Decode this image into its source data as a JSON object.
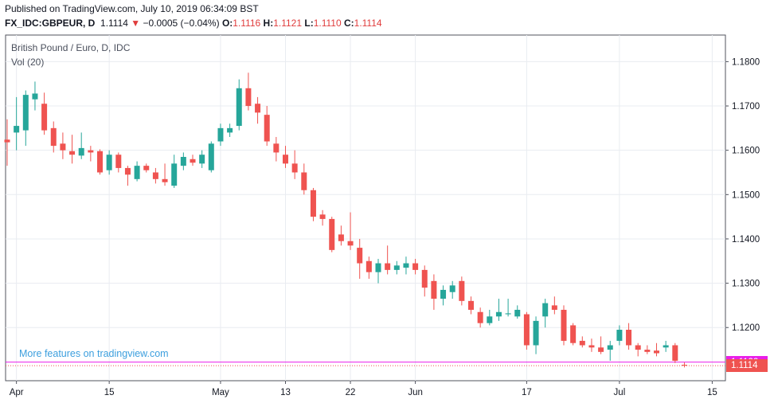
{
  "header": {
    "published": "Published on TradingView.com, July 10, 2019 06:34:09 BST",
    "symbol": "FX_IDC:GBPEUR, D",
    "last": "1.1114",
    "change": "−0.0005 (−0.04%)",
    "o_label": "O:",
    "o_value": "1.1116",
    "h_label": "H:",
    "h_value": "1.1121",
    "l_label": "L:",
    "l_value": "1.1110",
    "c_label": "C:",
    "c_value": "1.1114"
  },
  "legend": {
    "title": "British Pound / Euro, D, IDC",
    "volume": "Vol (20)"
  },
  "promo": "More features on tradingview.com",
  "price_tags": [
    {
      "label": "1.1122",
      "color": "#e91ee9"
    },
    {
      "label": "1.1114",
      "color": "#ef5350"
    }
  ],
  "colors": {
    "up": "#26a69a",
    "down": "#ef5350",
    "grid": "#e9ecf1"
  },
  "chart_data": {
    "type": "candlestick",
    "title": "British Pound / Euro, D, IDC",
    "ylim": [
      1.108,
      1.186
    ],
    "y_ticks": [
      "1.1200",
      "1.1300",
      "1.1400",
      "1.1500",
      "1.1600",
      "1.1700",
      "1.1800"
    ],
    "x_ticks": [
      "Apr",
      "15",
      "May",
      "13",
      "22",
      "Jun",
      "17",
      "Jul",
      "15"
    ],
    "horizontal_lines": [
      1.1122,
      1.1114
    ],
    "candles": [
      {
        "o": 1.1624,
        "h": 1.167,
        "l": 1.1565,
        "c": 1.1618
      },
      {
        "o": 1.164,
        "h": 1.172,
        "l": 1.16,
        "c": 1.1655
      },
      {
        "o": 1.1645,
        "h": 1.1735,
        "l": 1.161,
        "c": 1.1725
      },
      {
        "o": 1.1715,
        "h": 1.1755,
        "l": 1.169,
        "c": 1.1728
      },
      {
        "o": 1.1705,
        "h": 1.173,
        "l": 1.1635,
        "c": 1.1645
      },
      {
        "o": 1.165,
        "h": 1.1665,
        "l": 1.1595,
        "c": 1.161
      },
      {
        "o": 1.1615,
        "h": 1.164,
        "l": 1.158,
        "c": 1.16
      },
      {
        "o": 1.1598,
        "h": 1.1635,
        "l": 1.157,
        "c": 1.159
      },
      {
        "o": 1.1588,
        "h": 1.164,
        "l": 1.158,
        "c": 1.1605
      },
      {
        "o": 1.16,
        "h": 1.161,
        "l": 1.1575,
        "c": 1.1595
      },
      {
        "o": 1.1598,
        "h": 1.1602,
        "l": 1.1545,
        "c": 1.155
      },
      {
        "o": 1.1555,
        "h": 1.16,
        "l": 1.1545,
        "c": 1.159
      },
      {
        "o": 1.159,
        "h": 1.1595,
        "l": 1.155,
        "c": 1.156
      },
      {
        "o": 1.156,
        "h": 1.1565,
        "l": 1.152,
        "c": 1.1545
      },
      {
        "o": 1.1535,
        "h": 1.1575,
        "l": 1.153,
        "c": 1.1565
      },
      {
        "o": 1.1565,
        "h": 1.157,
        "l": 1.155,
        "c": 1.1555
      },
      {
        "o": 1.155,
        "h": 1.156,
        "l": 1.1525,
        "c": 1.1535
      },
      {
        "o": 1.1535,
        "h": 1.157,
        "l": 1.152,
        "c": 1.1528
      },
      {
        "o": 1.152,
        "h": 1.159,
        "l": 1.1515,
        "c": 1.157
      },
      {
        "o": 1.1565,
        "h": 1.1595,
        "l": 1.1555,
        "c": 1.1585
      },
      {
        "o": 1.158,
        "h": 1.159,
        "l": 1.1565,
        "c": 1.1572
      },
      {
        "o": 1.157,
        "h": 1.16,
        "l": 1.156,
        "c": 1.159
      },
      {
        "o": 1.1555,
        "h": 1.162,
        "l": 1.155,
        "c": 1.1615
      },
      {
        "o": 1.162,
        "h": 1.166,
        "l": 1.161,
        "c": 1.165
      },
      {
        "o": 1.164,
        "h": 1.166,
        "l": 1.163,
        "c": 1.165
      },
      {
        "o": 1.1655,
        "h": 1.176,
        "l": 1.1645,
        "c": 1.174
      },
      {
        "o": 1.174,
        "h": 1.1775,
        "l": 1.169,
        "c": 1.17
      },
      {
        "o": 1.1705,
        "h": 1.172,
        "l": 1.166,
        "c": 1.1685
      },
      {
        "o": 1.168,
        "h": 1.17,
        "l": 1.161,
        "c": 1.162
      },
      {
        "o": 1.1615,
        "h": 1.163,
        "l": 1.1575,
        "c": 1.1595
      },
      {
        "o": 1.159,
        "h": 1.161,
        "l": 1.156,
        "c": 1.157
      },
      {
        "o": 1.157,
        "h": 1.16,
        "l": 1.1535,
        "c": 1.155
      },
      {
        "o": 1.155,
        "h": 1.157,
        "l": 1.15,
        "c": 1.151
      },
      {
        "o": 1.151,
        "h": 1.1515,
        "l": 1.144,
        "c": 1.145
      },
      {
        "o": 1.1455,
        "h": 1.1465,
        "l": 1.143,
        "c": 1.1445
      },
      {
        "o": 1.1445,
        "h": 1.145,
        "l": 1.137,
        "c": 1.1375
      },
      {
        "o": 1.141,
        "h": 1.143,
        "l": 1.1385,
        "c": 1.1395
      },
      {
        "o": 1.1395,
        "h": 1.146,
        "l": 1.1375,
        "c": 1.1385
      },
      {
        "o": 1.138,
        "h": 1.14,
        "l": 1.131,
        "c": 1.1345
      },
      {
        "o": 1.135,
        "h": 1.136,
        "l": 1.131,
        "c": 1.1325
      },
      {
        "o": 1.1325,
        "h": 1.1355,
        "l": 1.13,
        "c": 1.1345
      },
      {
        "o": 1.1345,
        "h": 1.1385,
        "l": 1.132,
        "c": 1.133
      },
      {
        "o": 1.133,
        "h": 1.135,
        "l": 1.132,
        "c": 1.134
      },
      {
        "o": 1.1335,
        "h": 1.136,
        "l": 1.132,
        "c": 1.1345
      },
      {
        "o": 1.1345,
        "h": 1.1355,
        "l": 1.132,
        "c": 1.133
      },
      {
        "o": 1.133,
        "h": 1.134,
        "l": 1.127,
        "c": 1.129
      },
      {
        "o": 1.1305,
        "h": 1.132,
        "l": 1.124,
        "c": 1.1265
      },
      {
        "o": 1.1265,
        "h": 1.1295,
        "l": 1.125,
        "c": 1.1285
      },
      {
        "o": 1.128,
        "h": 1.1305,
        "l": 1.1265,
        "c": 1.1295
      },
      {
        "o": 1.1305,
        "h": 1.1315,
        "l": 1.125,
        "c": 1.126
      },
      {
        "o": 1.126,
        "h": 1.127,
        "l": 1.123,
        "c": 1.124
      },
      {
        "o": 1.1235,
        "h": 1.1245,
        "l": 1.12,
        "c": 1.121
      },
      {
        "o": 1.121,
        "h": 1.124,
        "l": 1.1205,
        "c": 1.1225
      },
      {
        "o": 1.1225,
        "h": 1.1265,
        "l": 1.1215,
        "c": 1.1235
      },
      {
        "o": 1.123,
        "h": 1.1265,
        "l": 1.1225,
        "c": 1.1232
      },
      {
        "o": 1.1225,
        "h": 1.125,
        "l": 1.122,
        "c": 1.124
      },
      {
        "o": 1.123,
        "h": 1.1235,
        "l": 1.115,
        "c": 1.116
      },
      {
        "o": 1.116,
        "h": 1.1225,
        "l": 1.114,
        "c": 1.1215
      },
      {
        "o": 1.1225,
        "h": 1.1265,
        "l": 1.12,
        "c": 1.1255
      },
      {
        "o": 1.125,
        "h": 1.127,
        "l": 1.123,
        "c": 1.124
      },
      {
        "o": 1.124,
        "h": 1.125,
        "l": 1.116,
        "c": 1.117
      },
      {
        "o": 1.1205,
        "h": 1.121,
        "l": 1.116,
        "c": 1.1165
      },
      {
        "o": 1.117,
        "h": 1.118,
        "l": 1.1155,
        "c": 1.116
      },
      {
        "o": 1.116,
        "h": 1.1175,
        "l": 1.1145,
        "c": 1.1155
      },
      {
        "o": 1.1155,
        "h": 1.118,
        "l": 1.114,
        "c": 1.1145
      },
      {
        "o": 1.115,
        "h": 1.117,
        "l": 1.1125,
        "c": 1.116
      },
      {
        "o": 1.117,
        "h": 1.1205,
        "l": 1.116,
        "c": 1.1195
      },
      {
        "o": 1.1195,
        "h": 1.121,
        "l": 1.115,
        "c": 1.116
      },
      {
        "o": 1.116,
        "h": 1.1165,
        "l": 1.1135,
        "c": 1.115
      },
      {
        "o": 1.115,
        "h": 1.116,
        "l": 1.114,
        "c": 1.1145
      },
      {
        "o": 1.1148,
        "h": 1.1165,
        "l": 1.1135,
        "c": 1.1142
      },
      {
        "o": 1.1155,
        "h": 1.117,
        "l": 1.1145,
        "c": 1.116
      },
      {
        "o": 1.116,
        "h": 1.1165,
        "l": 1.112,
        "c": 1.1125
      },
      {
        "o": 1.1116,
        "h": 1.1121,
        "l": 1.111,
        "c": 1.1114
      }
    ]
  }
}
